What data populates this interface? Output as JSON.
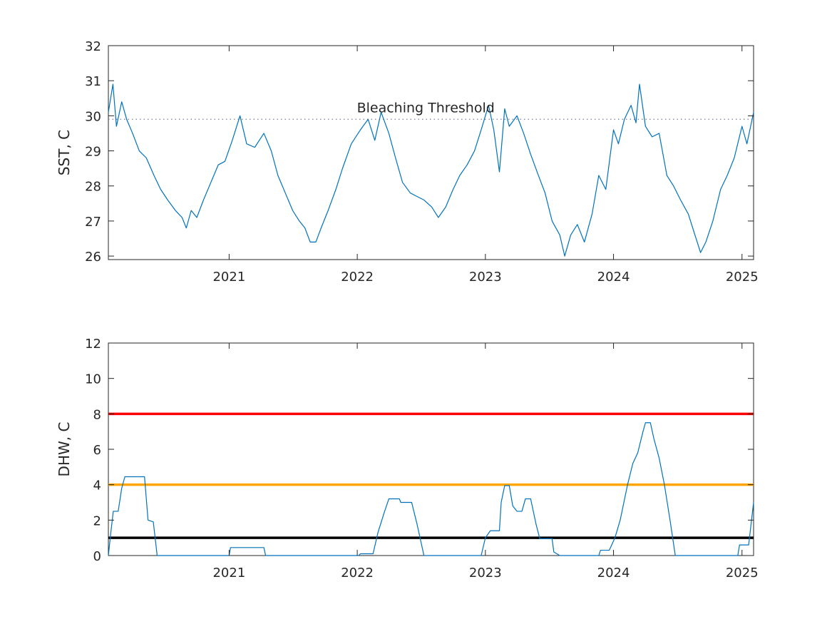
{
  "colors": {
    "series": "#0072bd",
    "threshold_dotted": "#7e7ea0",
    "red_line": "#ff0000",
    "orange_line": "#ffa500",
    "black_line": "#000000",
    "axis": "#262626"
  },
  "chart_data": [
    {
      "type": "line",
      "title": "",
      "xlabel": "",
      "ylabel": "SST, C",
      "xlim": [
        "2020-01-23",
        "2025-02-03"
      ],
      "ylim": [
        25.9,
        32
      ],
      "x_ticks": [
        "2021",
        "2022",
        "2023",
        "2024",
        "2025"
      ],
      "y_ticks": [
        26,
        27,
        28,
        29,
        30,
        31,
        32
      ],
      "grid": false,
      "annotations": [
        {
          "text": "Bleaching Threshold",
          "x": "2021-12-31",
          "y": 30.1
        }
      ],
      "reference_lines": [
        {
          "y": 29.9,
          "style": "dotted",
          "color": "#7e7ea0"
        }
      ],
      "series": [
        {
          "color": "#0072bd",
          "points": [
            [
              "2020-01-23",
              30.1
            ],
            [
              "2020-02-05",
              30.9
            ],
            [
              "2020-02-15",
              29.7
            ],
            [
              "2020-03-01",
              30.4
            ],
            [
              "2020-03-15",
              29.9
            ],
            [
              "2020-04-01",
              29.5
            ],
            [
              "2020-04-20",
              29.0
            ],
            [
              "2020-05-10",
              28.8
            ],
            [
              "2020-06-01",
              28.3
            ],
            [
              "2020-06-20",
              27.9
            ],
            [
              "2020-07-10",
              27.6
            ],
            [
              "2020-08-01",
              27.3
            ],
            [
              "2020-08-20",
              27.1
            ],
            [
              "2020-09-01",
              26.8
            ],
            [
              "2020-09-15",
              27.3
            ],
            [
              "2020-10-01",
              27.1
            ],
            [
              "2020-10-20",
              27.6
            ],
            [
              "2020-11-10",
              28.1
            ],
            [
              "2020-12-01",
              28.6
            ],
            [
              "2020-12-20",
              28.7
            ],
            [
              "2021-01-10",
              29.3
            ],
            [
              "2021-02-01",
              30.0
            ],
            [
              "2021-02-20",
              29.2
            ],
            [
              "2021-03-15",
              29.1
            ],
            [
              "2021-04-10",
              29.5
            ],
            [
              "2021-05-01",
              29.0
            ],
            [
              "2021-05-20",
              28.3
            ],
            [
              "2021-06-10",
              27.8
            ],
            [
              "2021-07-01",
              27.3
            ],
            [
              "2021-07-20",
              27.0
            ],
            [
              "2021-08-05",
              26.8
            ],
            [
              "2021-08-20",
              26.4
            ],
            [
              "2021-09-05",
              26.4
            ],
            [
              "2021-09-20",
              26.8
            ],
            [
              "2021-10-10",
              27.3
            ],
            [
              "2021-11-01",
              27.9
            ],
            [
              "2021-11-20",
              28.5
            ],
            [
              "2021-12-15",
              29.2
            ],
            [
              "2022-01-10",
              29.6
            ],
            [
              "2022-02-01",
              29.9
            ],
            [
              "2022-02-20",
              29.3
            ],
            [
              "2022-03-10",
              30.1
            ],
            [
              "2022-04-01",
              29.5
            ],
            [
              "2022-04-20",
              28.8
            ],
            [
              "2022-05-10",
              28.1
            ],
            [
              "2022-06-01",
              27.8
            ],
            [
              "2022-06-20",
              27.7
            ],
            [
              "2022-07-10",
              27.6
            ],
            [
              "2022-08-01",
              27.4
            ],
            [
              "2022-08-20",
              27.1
            ],
            [
              "2022-09-10",
              27.4
            ],
            [
              "2022-10-01",
              27.9
            ],
            [
              "2022-10-20",
              28.3
            ],
            [
              "2022-11-10",
              28.6
            ],
            [
              "2022-12-01",
              29.0
            ],
            [
              "2022-12-20",
              29.6
            ],
            [
              "2023-01-10",
              30.3
            ],
            [
              "2023-01-25",
              29.6
            ],
            [
              "2023-02-10",
              28.4
            ],
            [
              "2023-02-25",
              30.2
            ],
            [
              "2023-03-10",
              29.7
            ],
            [
              "2023-04-01",
              30.0
            ],
            [
              "2023-04-20",
              29.5
            ],
            [
              "2023-05-10",
              28.9
            ],
            [
              "2023-06-01",
              28.3
            ],
            [
              "2023-06-20",
              27.8
            ],
            [
              "2023-07-10",
              27.0
            ],
            [
              "2023-08-01",
              26.6
            ],
            [
              "2023-08-15",
              26.0
            ],
            [
              "2023-09-01",
              26.6
            ],
            [
              "2023-09-20",
              26.9
            ],
            [
              "2023-10-10",
              26.4
            ],
            [
              "2023-11-01",
              27.2
            ],
            [
              "2023-11-20",
              28.3
            ],
            [
              "2023-12-10",
              27.9
            ],
            [
              "2024-01-01",
              29.6
            ],
            [
              "2024-01-15",
              29.2
            ],
            [
              "2024-02-01",
              29.9
            ],
            [
              "2024-02-20",
              30.3
            ],
            [
              "2024-03-05",
              29.8
            ],
            [
              "2024-03-15",
              30.9
            ],
            [
              "2024-04-01",
              29.7
            ],
            [
              "2024-04-20",
              29.4
            ],
            [
              "2024-05-10",
              29.5
            ],
            [
              "2024-06-01",
              28.3
            ],
            [
              "2024-06-20",
              28.0
            ],
            [
              "2024-07-10",
              27.6
            ],
            [
              "2024-08-01",
              27.2
            ],
            [
              "2024-08-20",
              26.6
            ],
            [
              "2024-09-05",
              26.1
            ],
            [
              "2024-09-20",
              26.4
            ],
            [
              "2024-10-10",
              27.0
            ],
            [
              "2024-11-01",
              27.9
            ],
            [
              "2024-11-20",
              28.3
            ],
            [
              "2024-12-10",
              28.8
            ],
            [
              "2025-01-01",
              29.7
            ],
            [
              "2025-01-15",
              29.2
            ],
            [
              "2025-02-03",
              30.1
            ]
          ]
        }
      ]
    },
    {
      "type": "line",
      "title": "",
      "xlabel": "",
      "ylabel": "DHW, C",
      "xlim": [
        "2020-01-23",
        "2025-02-03"
      ],
      "ylim": [
        0,
        12
      ],
      "x_ticks": [
        "2021",
        "2022",
        "2023",
        "2024",
        "2025"
      ],
      "y_ticks": [
        0,
        2,
        4,
        6,
        8,
        10,
        12
      ],
      "grid": false,
      "reference_lines": [
        {
          "y": 8,
          "color": "#ff0000",
          "style": "solid"
        },
        {
          "y": 4,
          "color": "#ffa500",
          "style": "solid"
        },
        {
          "y": 1,
          "color": "#000000",
          "style": "solid"
        }
      ],
      "series": [
        {
          "color": "#0072bd",
          "points": [
            [
              "2020-01-23",
              0
            ],
            [
              "2020-01-30",
              1.3
            ],
            [
              "2020-02-06",
              2.5
            ],
            [
              "2020-02-20",
              2.5
            ],
            [
              "2020-03-01",
              3.8
            ],
            [
              "2020-03-10",
              4.45
            ],
            [
              "2020-05-05",
              4.45
            ],
            [
              "2020-05-15",
              2.0
            ],
            [
              "2020-05-30",
              1.9
            ],
            [
              "2020-06-10",
              0
            ],
            [
              "2021-01-01",
              0
            ],
            [
              "2021-01-05",
              0.45
            ],
            [
              "2021-04-10",
              0.45
            ],
            [
              "2021-04-15",
              0
            ],
            [
              "2022-01-05",
              0
            ],
            [
              "2022-01-10",
              0.1
            ],
            [
              "2022-02-15",
              0.1
            ],
            [
              "2022-03-01",
              1.3
            ],
            [
              "2022-03-20",
              2.5
            ],
            [
              "2022-04-01",
              3.2
            ],
            [
              "2022-05-01",
              3.2
            ],
            [
              "2022-05-05",
              3.0
            ],
            [
              "2022-06-05",
              3.0
            ],
            [
              "2022-06-20",
              1.8
            ],
            [
              "2022-07-10",
              0
            ],
            [
              "2022-12-20",
              0
            ],
            [
              "2023-01-01",
              1.0
            ],
            [
              "2023-01-15",
              1.4
            ],
            [
              "2023-02-10",
              1.4
            ],
            [
              "2023-02-15",
              3.0
            ],
            [
              "2023-02-25",
              3.95
            ],
            [
              "2023-03-10",
              3.95
            ],
            [
              "2023-03-20",
              2.8
            ],
            [
              "2023-04-01",
              2.5
            ],
            [
              "2023-04-15",
              2.5
            ],
            [
              "2023-04-25",
              3.2
            ],
            [
              "2023-05-10",
              3.2
            ],
            [
              "2023-05-25",
              1.8
            ],
            [
              "2023-06-05",
              0.95
            ],
            [
              "2023-07-10",
              0.95
            ],
            [
              "2023-07-15",
              0.2
            ],
            [
              "2023-08-01",
              0
            ],
            [
              "2023-11-20",
              0
            ],
            [
              "2023-11-25",
              0.3
            ],
            [
              "2023-12-20",
              0.3
            ],
            [
              "2024-01-05",
              1.0
            ],
            [
              "2024-01-20",
              2.0
            ],
            [
              "2024-02-10",
              4.0
            ],
            [
              "2024-02-25",
              5.2
            ],
            [
              "2024-03-10",
              5.8
            ],
            [
              "2024-03-25",
              7.0
            ],
            [
              "2024-04-01",
              7.5
            ],
            [
              "2024-04-15",
              7.5
            ],
            [
              "2024-04-25",
              6.6
            ],
            [
              "2024-05-10",
              5.5
            ],
            [
              "2024-05-25",
              4.0
            ],
            [
              "2024-06-10",
              2.0
            ],
            [
              "2024-06-25",
              0
            ],
            [
              "2024-12-20",
              0
            ],
            [
              "2024-12-25",
              0.6
            ],
            [
              "2025-01-20",
              0.6
            ],
            [
              "2025-02-03",
              3.0
            ]
          ]
        }
      ]
    }
  ]
}
